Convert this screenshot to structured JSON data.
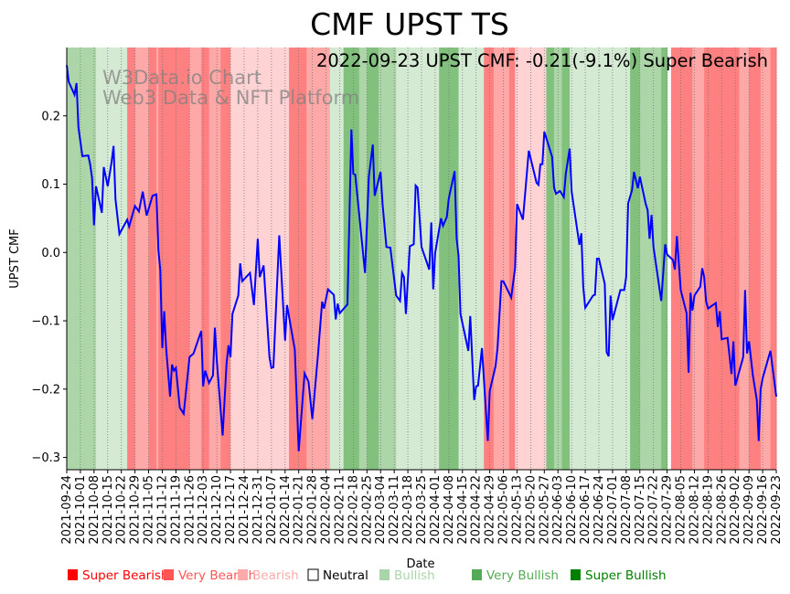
{
  "chart_data": {
    "type": "line",
    "title": "CMF UPST TS",
    "annotation": "2022-09-23 UPST CMF: -0.21(-9.1%) Super Bearish",
    "watermark": [
      "W3Data.io Chart",
      "Web3 Data & NFT Platform"
    ],
    "xlabel": "Date",
    "ylabel": "UPST CMF",
    "x_unit": "days since 2021-09-24",
    "xlim": [
      0,
      364
    ],
    "ylim": [
      -0.318,
      0.3
    ],
    "yticks": [
      0.2,
      0.1,
      0.0,
      -0.1,
      -0.2,
      -0.3
    ],
    "ytick_labels": [
      "0.2",
      "0.1",
      "0.0",
      "−0.1",
      "−0.2",
      "−0.3"
    ],
    "xtick_days_step": 7,
    "xtick_labels": [
      "2021-09-24",
      "2021-10-01",
      "2021-10-08",
      "2021-10-15",
      "2021-10-22",
      "2021-10-29",
      "2021-11-05",
      "2021-11-12",
      "2021-11-19",
      "2021-11-26",
      "2021-12-03",
      "2021-12-10",
      "2021-12-17",
      "2021-12-24",
      "2021-12-31",
      "2022-01-07",
      "2022-01-14",
      "2022-01-21",
      "2022-01-28",
      "2022-02-04",
      "2022-02-11",
      "2022-02-18",
      "2022-02-25",
      "2022-03-04",
      "2022-03-11",
      "2022-03-18",
      "2022-03-25",
      "2022-04-01",
      "2022-04-08",
      "2022-04-15",
      "2022-04-22",
      "2022-04-29",
      "2022-05-06",
      "2022-05-13",
      "2022-05-20",
      "2022-05-27",
      "2022-06-03",
      "2022-06-10",
      "2022-06-17",
      "2022-06-24",
      "2022-07-01",
      "2022-07-08",
      "2022-07-15",
      "2022-07-22",
      "2022-07-29",
      "2022-08-05",
      "2022-08-12",
      "2022-08-19",
      "2022-08-26",
      "2022-09-02",
      "2022-09-09",
      "2022-09-16",
      "2022-09-23"
    ],
    "grid": "vertical dotted",
    "line_color": "#0000ff",
    "series": [
      {
        "name": "UPST CMF",
        "points": [
          [
            0,
            0.274
          ],
          [
            1,
            0.25
          ],
          [
            4,
            0.231
          ],
          [
            5,
            0.248
          ],
          [
            6,
            0.183
          ],
          [
            8,
            0.141
          ],
          [
            11,
            0.142
          ],
          [
            12,
            0.129
          ],
          [
            13,
            0.109
          ],
          [
            14,
            0.04
          ],
          [
            15,
            0.097
          ],
          [
            18,
            0.058
          ],
          [
            19,
            0.125
          ],
          [
            21,
            0.097
          ],
          [
            23,
            0.132
          ],
          [
            24,
            0.156
          ],
          [
            25,
            0.078
          ],
          [
            27,
            0.027
          ],
          [
            31,
            0.048
          ],
          [
            32,
            0.038
          ],
          [
            35,
            0.068
          ],
          [
            37,
            0.06
          ],
          [
            39,
            0.089
          ],
          [
            41,
            0.054
          ],
          [
            44,
            0.083
          ],
          [
            46,
            0.085
          ],
          [
            47,
            0.004
          ],
          [
            48,
            -0.026
          ],
          [
            49,
            -0.14
          ],
          [
            50,
            -0.086
          ],
          [
            51,
            -0.14
          ],
          [
            53,
            -0.211
          ],
          [
            54,
            -0.164
          ],
          [
            55,
            -0.173
          ],
          [
            56,
            -0.169
          ],
          [
            58,
            -0.227
          ],
          [
            60,
            -0.236
          ],
          [
            63,
            -0.153
          ],
          [
            65,
            -0.148
          ],
          [
            69,
            -0.115
          ],
          [
            70,
            -0.196
          ],
          [
            71,
            -0.173
          ],
          [
            73,
            -0.191
          ],
          [
            75,
            -0.18
          ],
          [
            76,
            -0.11
          ],
          [
            77,
            -0.16
          ],
          [
            80,
            -0.268
          ],
          [
            82,
            -0.162
          ],
          [
            83,
            -0.136
          ],
          [
            84,
            -0.153
          ],
          [
            85,
            -0.09
          ],
          [
            88,
            -0.063
          ],
          [
            89,
            -0.016
          ],
          [
            90,
            -0.042
          ],
          [
            94,
            -0.03
          ],
          [
            96,
            -0.077
          ],
          [
            98,
            0.02
          ],
          [
            99,
            -0.036
          ],
          [
            101,
            -0.019
          ],
          [
            104,
            -0.153
          ],
          [
            105,
            -0.169
          ],
          [
            106,
            -0.168
          ],
          [
            109,
            0.025
          ],
          [
            112,
            -0.129
          ],
          [
            113,
            -0.077
          ],
          [
            117,
            -0.142
          ],
          [
            119,
            -0.291
          ],
          [
            122,
            -0.177
          ],
          [
            124,
            -0.189
          ],
          [
            126,
            -0.244
          ],
          [
            129,
            -0.146
          ],
          [
            131,
            -0.072
          ],
          [
            132,
            -0.082
          ],
          [
            134,
            -0.054
          ],
          [
            137,
            -0.062
          ],
          [
            138,
            -0.098
          ],
          [
            139,
            -0.075
          ],
          [
            140,
            -0.089
          ],
          [
            144,
            -0.076
          ],
          [
            146,
            0.18
          ],
          [
            147,
            0.115
          ],
          [
            148,
            0.114
          ],
          [
            153,
            -0.03
          ],
          [
            155,
            0.111
          ],
          [
            157,
            0.158
          ],
          [
            158,
            0.083
          ],
          [
            161,
            0.118
          ],
          [
            162,
            0.071
          ],
          [
            164,
            0.008
          ],
          [
            166,
            0.007
          ],
          [
            169,
            -0.063
          ],
          [
            171,
            -0.071
          ],
          [
            172,
            -0.03
          ],
          [
            173,
            -0.036
          ],
          [
            174,
            -0.09
          ],
          [
            176,
            0.009
          ],
          [
            178,
            0.012
          ],
          [
            179,
            0.098
          ],
          [
            180,
            0.095
          ],
          [
            182,
            0.008
          ],
          [
            186,
            -0.025
          ],
          [
            187,
            0.044
          ],
          [
            188,
            -0.054
          ],
          [
            189,
            -0.001
          ],
          [
            192,
            0.05
          ],
          [
            193,
            0.039
          ],
          [
            195,
            0.052
          ],
          [
            196,
            0.079
          ],
          [
            199,
            0.119
          ],
          [
            200,
            0.021
          ],
          [
            201,
            -0.005
          ],
          [
            202,
            -0.09
          ],
          [
            206,
            -0.144
          ],
          [
            207,
            -0.093
          ],
          [
            209,
            -0.216
          ],
          [
            210,
            -0.196
          ],
          [
            211,
            -0.195
          ],
          [
            213,
            -0.14
          ],
          [
            216,
            -0.276
          ],
          [
            217,
            -0.203
          ],
          [
            220,
            -0.166
          ],
          [
            221,
            -0.14
          ],
          [
            223,
            -0.042
          ],
          [
            224,
            -0.042
          ],
          [
            228,
            -0.066
          ],
          [
            230,
            -0.023
          ],
          [
            231,
            0.071
          ],
          [
            234,
            0.048
          ],
          [
            237,
            0.149
          ],
          [
            241,
            0.102
          ],
          [
            242,
            0.099
          ],
          [
            243,
            0.129
          ],
          [
            244,
            0.129
          ],
          [
            245,
            0.177
          ],
          [
            249,
            0.14
          ],
          [
            250,
            0.095
          ],
          [
            251,
            0.086
          ],
          [
            253,
            0.09
          ],
          [
            255,
            0.081
          ],
          [
            256,
            0.115
          ],
          [
            258,
            0.152
          ],
          [
            259,
            0.089
          ],
          [
            263,
            0.011
          ],
          [
            264,
            0.028
          ],
          [
            265,
            -0.051
          ],
          [
            266,
            -0.081
          ],
          [
            270,
            -0.063
          ],
          [
            271,
            -0.062
          ],
          [
            272,
            -0.009
          ],
          [
            273,
            -0.009
          ],
          [
            276,
            -0.046
          ],
          [
            277,
            -0.146
          ],
          [
            278,
            -0.152
          ],
          [
            279,
            -0.063
          ],
          [
            280,
            -0.099
          ],
          [
            284,
            -0.055
          ],
          [
            286,
            -0.055
          ],
          [
            287,
            -0.036
          ],
          [
            288,
            0.072
          ],
          [
            290,
            0.091
          ],
          [
            291,
            0.118
          ],
          [
            293,
            0.094
          ],
          [
            294,
            0.111
          ],
          [
            297,
            0.071
          ],
          [
            298,
            0.062
          ],
          [
            299,
            0.02
          ],
          [
            300,
            0.055
          ],
          [
            301,
            0.008
          ],
          [
            305,
            -0.071
          ],
          [
            307,
            0.012
          ],
          [
            308,
            -0.003
          ],
          [
            311,
            -0.011
          ],
          [
            312,
            -0.025
          ],
          [
            313,
            0.024
          ],
          [
            315,
            -0.055
          ],
          [
            318,
            -0.089
          ],
          [
            319,
            -0.176
          ],
          [
            320,
            -0.059
          ],
          [
            321,
            -0.085
          ],
          [
            322,
            -0.063
          ],
          [
            325,
            -0.05
          ],
          [
            326,
            -0.023
          ],
          [
            327,
            -0.036
          ],
          [
            328,
            -0.072
          ],
          [
            329,
            -0.082
          ],
          [
            333,
            -0.074
          ],
          [
            334,
            -0.109
          ],
          [
            335,
            -0.086
          ],
          [
            336,
            -0.127
          ],
          [
            339,
            -0.125
          ],
          [
            341,
            -0.178
          ],
          [
            342,
            -0.13
          ],
          [
            343,
            -0.195
          ],
          [
            347,
            -0.153
          ],
          [
            348,
            -0.055
          ],
          [
            349,
            -0.148
          ],
          [
            350,
            -0.13
          ],
          [
            352,
            -0.18
          ],
          [
            354,
            -0.216
          ],
          [
            355,
            -0.276
          ],
          [
            356,
            -0.2
          ],
          [
            357,
            -0.184
          ],
          [
            361,
            -0.144
          ],
          [
            364,
            -0.211
          ]
        ]
      }
    ],
    "band_levels": {
      "-3": "Super Bearish",
      "-2": "Very Bearish",
      "-1": "Bearish",
      "1": "Bullish",
      "2": "Very Bullish",
      "3": "Super Bullish"
    },
    "band_colors": {
      "-3": "#ff8080",
      "-2": "#ffa8a8",
      "-1": "#ffd3d3",
      "1": "#d5ead3",
      "2": "#acd5a8",
      "3": "#82c07e"
    },
    "bands": [
      [
        0,
        15,
        2
      ],
      [
        15,
        31,
        1
      ],
      [
        31,
        35,
        -3
      ],
      [
        35,
        42,
        -2
      ],
      [
        42,
        46,
        -3
      ],
      [
        46,
        47,
        -2
      ],
      [
        47,
        63,
        -3
      ],
      [
        63,
        69,
        -2
      ],
      [
        69,
        73,
        -3
      ],
      [
        73,
        79,
        -2
      ],
      [
        79,
        84,
        -3
      ],
      [
        84,
        114,
        -1
      ],
      [
        114,
        123,
        -3
      ],
      [
        123,
        135,
        -2
      ],
      [
        135,
        142,
        1
      ],
      [
        142,
        150,
        3
      ],
      [
        150,
        154,
        2
      ],
      [
        154,
        160,
        3
      ],
      [
        160,
        169,
        2
      ],
      [
        169,
        191,
        1
      ],
      [
        191,
        201,
        3
      ],
      [
        201,
        214,
        1
      ],
      [
        214,
        219,
        -3
      ],
      [
        219,
        227,
        -2
      ],
      [
        227,
        230,
        -3
      ],
      [
        230,
        246,
        -1
      ],
      [
        246,
        250,
        3
      ],
      [
        250,
        254,
        2
      ],
      [
        254,
        258,
        3
      ],
      [
        258,
        289,
        1
      ],
      [
        289,
        294,
        3
      ],
      [
        294,
        305,
        2
      ],
      [
        305,
        308,
        3
      ],
      [
        310,
        321,
        -3
      ],
      [
        321,
        327,
        -2
      ],
      [
        327,
        345,
        -3
      ],
      [
        345,
        350,
        -2
      ],
      [
        350,
        356,
        -3
      ],
      [
        356,
        361,
        -2
      ],
      [
        361,
        364,
        -3
      ]
    ],
    "legend": {
      "placement": "bottom",
      "entries": [
        {
          "label": "Super Bearish",
          "color": "#ff0000",
          "text_color": "#ff0000"
        },
        {
          "label": "Very Bearish",
          "color": "#ff5555",
          "text_color": "#ff5555"
        },
        {
          "label": "Bearish",
          "color": "#ffaaaa",
          "text_color": "#ffaaaa"
        },
        {
          "label": "Neutral",
          "color": "#ffffff",
          "text_color": "#000000"
        },
        {
          "label": "Bullish",
          "color": "#aad5aa",
          "text_color": "#aad5aa"
        },
        {
          "label": "Very Bullish",
          "color": "#55aa55",
          "text_color": "#55aa55"
        },
        {
          "label": "Super Bullish",
          "color": "#008000",
          "text_color": "#008000"
        }
      ]
    }
  }
}
